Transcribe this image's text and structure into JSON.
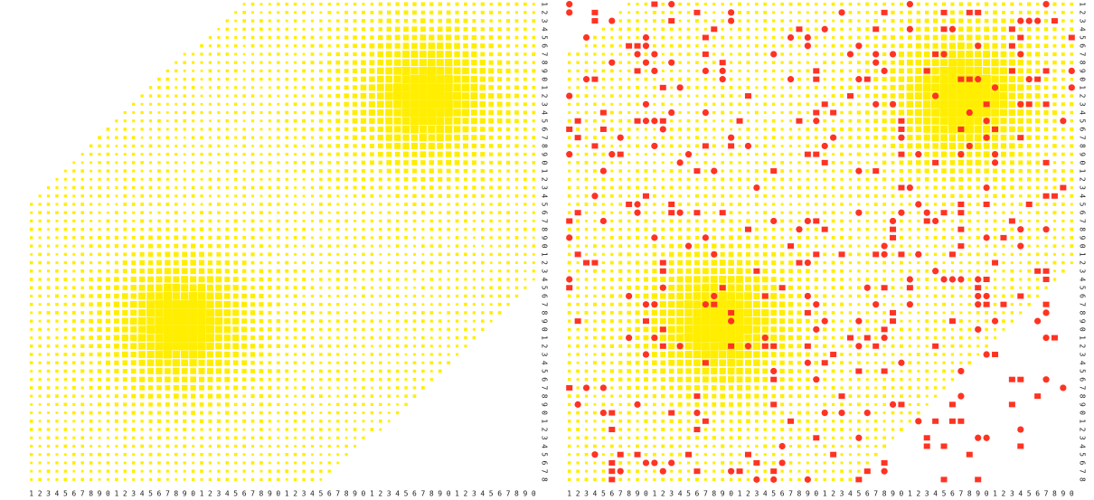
{
  "left_panel": {
    "x_labels": [
      "1",
      "2",
      "3",
      "4",
      "5",
      "6",
      "7",
      "8",
      "9",
      "0",
      "1",
      "2",
      "3",
      "4",
      "5",
      "6",
      "7",
      "8",
      "9",
      "0",
      "1",
      "2",
      "3",
      "4",
      "5",
      "6",
      "7",
      "8",
      "9",
      "0",
      "1",
      "2",
      "3",
      "4",
      "5",
      "6",
      "7",
      "8",
      "9",
      "0",
      "1",
      "2",
      "3",
      "4",
      "5",
      "6",
      "7",
      "8",
      "9",
      "0",
      "1",
      "2",
      "3",
      "4",
      "5",
      "6",
      "7",
      "8",
      "9",
      "0"
    ],
    "y_labels": [
      "1",
      "2",
      "3",
      "4",
      "5",
      "6",
      "7",
      "8",
      "9",
      "0",
      "1",
      "2",
      "3",
      "4",
      "5",
      "6",
      "7",
      "8",
      "9",
      "0",
      "1",
      "2",
      "3",
      "4",
      "5",
      "6",
      "7",
      "8",
      "9",
      "0",
      "1",
      "2",
      "3",
      "4",
      "5",
      "6",
      "7",
      "8",
      "9",
      "0",
      "1",
      "2",
      "3",
      "4",
      "5",
      "6",
      "7",
      "8",
      "9",
      "0",
      "1",
      "2",
      "3",
      "4",
      "5",
      "6",
      "7",
      "8"
    ]
  },
  "right_panel": {
    "x_labels": [
      "1",
      "2",
      "3",
      "4",
      "5",
      "6",
      "7",
      "8",
      "9",
      "0",
      "1",
      "2",
      "3",
      "4",
      "5",
      "6",
      "7",
      "8",
      "9",
      "0",
      "1",
      "2",
      "3",
      "4",
      "5",
      "6",
      "7",
      "8",
      "9",
      "0",
      "1",
      "2",
      "3",
      "4",
      "5",
      "6",
      "7",
      "8",
      "9",
      "0",
      "1",
      "2",
      "3",
      "4",
      "5",
      "6",
      "7",
      "8",
      "9",
      "0",
      "1",
      "2",
      "3",
      "4",
      "5",
      "6",
      "7",
      "8",
      "9",
      "0"
    ],
    "y_labels": [
      "1",
      "2",
      "3",
      "4",
      "5",
      "6",
      "7",
      "8",
      "9",
      "0",
      "1",
      "2",
      "3",
      "4",
      "5",
      "6",
      "7",
      "8",
      "9",
      "0",
      "1",
      "2",
      "3",
      "4",
      "5",
      "6",
      "7",
      "8",
      "9",
      "0",
      "1",
      "2",
      "3",
      "4",
      "5",
      "6",
      "7",
      "8",
      "9",
      "0",
      "1",
      "2",
      "3",
      "4",
      "5",
      "6",
      "7",
      "8",
      "9",
      "0",
      "1",
      "2",
      "3",
      "4",
      "5",
      "6",
      "7",
      "8"
    ]
  }
}
